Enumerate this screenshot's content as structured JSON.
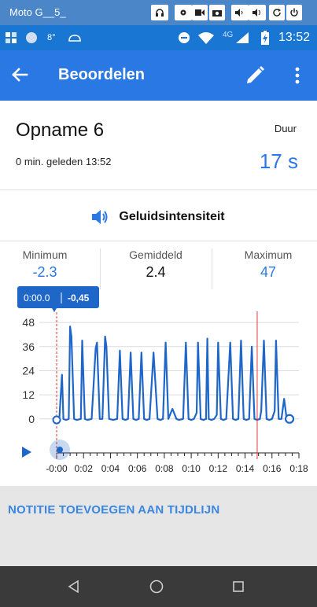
{
  "emulator": {
    "device_name": "Moto G__5_",
    "buttons": [
      "headset-icon",
      "gear-icon",
      "video-icon",
      "camera-icon",
      "volume-down-icon",
      "volume-up-icon",
      "rotate-icon",
      "power-icon"
    ]
  },
  "status_bar": {
    "temp": "8°",
    "network": "4G",
    "time": "13:52"
  },
  "app_bar": {
    "title": "Beoordelen"
  },
  "recording": {
    "title": "Opname 6",
    "time": "0 min. geleden 13:52",
    "duration_label": "Duur",
    "duration_value": "17 s"
  },
  "section": {
    "title": "Geluidsintensiteit"
  },
  "stats": {
    "min_label": "Minimum",
    "min_value": "-2.3",
    "avg_label": "Gemiddeld",
    "avg_value": "2.4",
    "max_label": "Maximum",
    "max_value": "47"
  },
  "tooltip": {
    "time": "0:00.0",
    "value": "-0,45"
  },
  "note_link": "NOTITIE TOEVOEGEN AAN TIJDLIJN",
  "colors": {
    "accent": "#2a78e4",
    "line": "#1e66c8",
    "marker": "#e53935"
  },
  "chart_data": {
    "type": "line",
    "ylim": [
      -4,
      50
    ],
    "yticks": [
      0,
      12,
      24,
      36,
      48
    ],
    "xlim": [
      -0.5,
      18
    ],
    "xtick_labels": [
      "-0:00",
      "0:02",
      "0:04",
      "0:06",
      "0:08",
      "0:10",
      "0:12",
      "0:14",
      "0:16",
      "0:18"
    ],
    "xtick_values": [
      0,
      2,
      4,
      6,
      8,
      10,
      12,
      14,
      16,
      18
    ],
    "series": [
      {
        "x": [
          0.0,
          0.2,
          0.4,
          0.5,
          0.7,
          0.9,
          1.0,
          1.1,
          1.3,
          1.5,
          1.8,
          1.9,
          2.1,
          2.3,
          2.6,
          2.9,
          3.0,
          3.2,
          3.4,
          3.6,
          3.7,
          3.9,
          4.2,
          4.5,
          4.7,
          4.9,
          5.1,
          5.3,
          5.5,
          5.7,
          5.9,
          6.1,
          6.3,
          6.5,
          6.7,
          6.9,
          7.2,
          7.5,
          7.7,
          7.9,
          8.1,
          8.3,
          8.6,
          8.9,
          9.1,
          9.4,
          9.6,
          9.8,
          10.0,
          10.2,
          10.4,
          10.5,
          10.7,
          10.9,
          11.1,
          11.2,
          11.3,
          11.5,
          11.7,
          11.9,
          12.0,
          12.2,
          12.4,
          12.6,
          12.9,
          13.1,
          13.3,
          13.5,
          13.7,
          13.9,
          14.1,
          14.3,
          14.5,
          14.7,
          14.9,
          15.1,
          15.2,
          15.4,
          15.6,
          15.8,
          16.0,
          16.2,
          16.3,
          16.5,
          16.7,
          16.9,
          17.1,
          17.3
        ],
        "y": [
          -0.5,
          0,
          22,
          0,
          -0.5,
          0,
          46,
          41,
          0,
          -0.5,
          0,
          39,
          0,
          -0.5,
          0,
          35,
          38,
          0,
          0,
          41,
          36,
          0,
          -0.5,
          0,
          34,
          0,
          -0.5,
          0,
          33,
          0,
          -0.5,
          0,
          33,
          0,
          -0.5,
          0,
          33,
          0,
          -0.5,
          0,
          38,
          0,
          5,
          0,
          -0.5,
          0,
          38,
          0,
          -0.5,
          0,
          3,
          38,
          0,
          -0.5,
          0,
          40,
          0,
          -0.5,
          0,
          2,
          38,
          0,
          -0.5,
          0,
          38,
          0,
          -0.5,
          0,
          39,
          0,
          -0.5,
          0,
          36,
          0,
          -0.5,
          0,
          4,
          39,
          0,
          -0.5,
          0,
          4,
          39,
          0,
          0,
          10,
          -0.5,
          0
        ]
      }
    ],
    "cursor_x": 0,
    "marker_x": 14.9
  }
}
